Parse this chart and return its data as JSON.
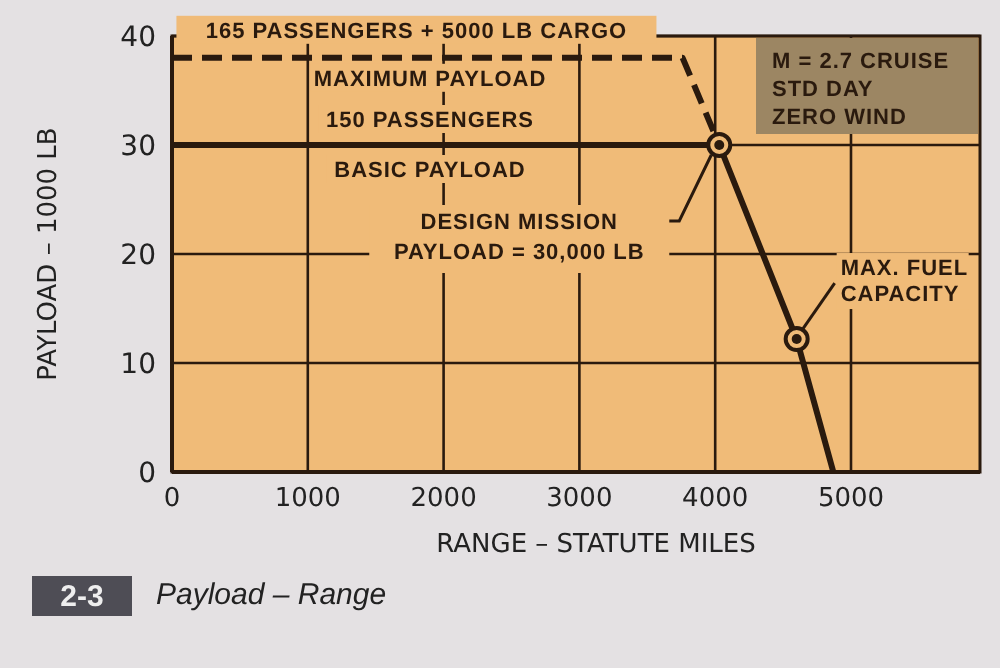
{
  "chart_data": {
    "type": "line",
    "title": "Payload – Range",
    "xlabel": "RANGE – STATUTE MILES",
    "ylabel": "PAYLOAD – 1000 LB",
    "xlim": [
      0,
      5950
    ],
    "xticks": [
      0,
      1000,
      2000,
      3000,
      4000,
      5000
    ],
    "ylim": [
      0,
      40
    ],
    "yticks": [
      0,
      10,
      20,
      30,
      40
    ],
    "grid": true,
    "series": [
      {
        "line_style": "dashed",
        "color": "#2a1a0e",
        "x": [
          0,
          3760,
          4030
        ],
        "values": [
          38,
          38,
          30
        ]
      },
      {
        "line_style": "solid",
        "color": "#2a1a0e",
        "x": [
          0,
          4030,
          4600,
          4870
        ],
        "values": [
          30,
          30,
          12.2,
          0
        ]
      },
      {
        "type": "scatter",
        "marker": "circle",
        "color": "#2a1a0e",
        "x": [
          4030,
          4600
        ],
        "values": [
          30,
          12.2
        ]
      }
    ],
    "annotations": [
      {
        "text": "165 PASSENGERS + 5000 LB CARGO",
        "x": 1800,
        "y": 38
      },
      {
        "text": "MAXIMUM PAYLOAD",
        "x": 1900,
        "y": 38
      },
      {
        "text": "150 PASSENGERS",
        "x": 1900,
        "y": 30
      },
      {
        "text": "BASIC PAYLOAD",
        "x": 1900,
        "y": 30
      },
      {
        "text": "DESIGN MISSION\nPAYLOAD = 30,000 LB",
        "x": 4030,
        "y": 30
      },
      {
        "text": "MAX. FUEL\nCAPACITY",
        "x": 4600,
        "y": 12.2
      },
      "M = 2.7 CRUISE\nSTD DAY\nZERO WIND",
      "2-3"
    ]
  }
}
